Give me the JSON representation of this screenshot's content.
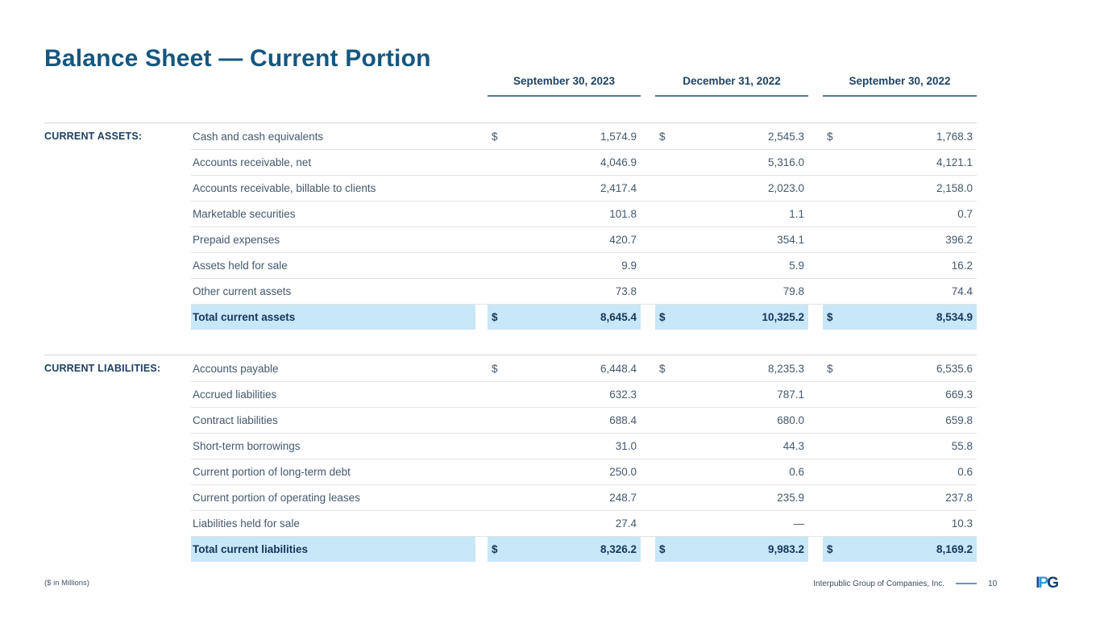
{
  "slide": {
    "title": "Balance Sheet — Current Portion",
    "columns": [
      "September 30, 2023",
      "December 31, 2022",
      "September 30, 2022"
    ],
    "sections": [
      {
        "label": "CURRENT ASSETS:",
        "rows": [
          {
            "label": "Cash and cash equivalents",
            "dollar": true,
            "total": false,
            "values": [
              "1,574.9",
              "2,545.3",
              "1,768.3"
            ]
          },
          {
            "label": "Accounts receivable, net",
            "dollar": false,
            "total": false,
            "values": [
              "4,046.9",
              "5,316.0",
              "4,121.1"
            ]
          },
          {
            "label": "Accounts receivable, billable to clients",
            "dollar": false,
            "total": false,
            "values": [
              "2,417.4",
              "2,023.0",
              "2,158.0"
            ]
          },
          {
            "label": "Marketable securities",
            "dollar": false,
            "total": false,
            "values": [
              "101.8",
              "1.1",
              "0.7"
            ]
          },
          {
            "label": "Prepaid expenses",
            "dollar": false,
            "total": false,
            "values": [
              "420.7",
              "354.1",
              "396.2"
            ]
          },
          {
            "label": "Assets held for sale",
            "dollar": false,
            "total": false,
            "values": [
              "9.9",
              "5.9",
              "16.2"
            ]
          },
          {
            "label": "Other current assets",
            "dollar": false,
            "total": false,
            "values": [
              "73.8",
              "79.8",
              "74.4"
            ]
          },
          {
            "label": "Total current assets",
            "dollar": true,
            "total": true,
            "values": [
              "8,645.4",
              "10,325.2",
              "8,534.9"
            ]
          }
        ]
      },
      {
        "label": "CURRENT LIABILITIES:",
        "rows": [
          {
            "label": "Accounts payable",
            "dollar": true,
            "total": false,
            "values": [
              "6,448.4",
              "8,235.3",
              "6,535.6"
            ]
          },
          {
            "label": "Accrued liabilities",
            "dollar": false,
            "total": false,
            "values": [
              "632.3",
              "787.1",
              "669.3"
            ]
          },
          {
            "label": "Contract liabilities",
            "dollar": false,
            "total": false,
            "values": [
              "688.4",
              "680.0",
              "659.8"
            ]
          },
          {
            "label": "Short-term borrowings",
            "dollar": false,
            "total": false,
            "values": [
              "31.0",
              "44.3",
              "55.8"
            ]
          },
          {
            "label": "Current portion of long-term debt",
            "dollar": false,
            "total": false,
            "values": [
              "250.0",
              "0.6",
              "0.6"
            ]
          },
          {
            "label": "Current portion of operating leases",
            "dollar": false,
            "total": false,
            "values": [
              "248.7",
              "235.9",
              "237.8"
            ]
          },
          {
            "label": "Liabilities held for sale",
            "dollar": false,
            "total": false,
            "values": [
              "27.4",
              "—",
              "10.3"
            ]
          },
          {
            "label": "Total current liabilities",
            "dollar": true,
            "total": true,
            "values": [
              "8,326.2",
              "9,983.2",
              "8,169.2"
            ]
          }
        ]
      }
    ],
    "dollar_sign": "$",
    "footer": {
      "left_note": "($ in Millions)",
      "company": "Interpublic Group of Companies, Inc.",
      "page_number": "10",
      "logo_letters": {
        "i": "I",
        "p": "P",
        "g": "G"
      }
    },
    "colors": {
      "title": "#14577f",
      "section_label": "#1e3f63",
      "row_text": "#44586d",
      "total_text": "#13375c",
      "highlight": "#c8e7f8",
      "header_underline": "#54779b"
    }
  }
}
